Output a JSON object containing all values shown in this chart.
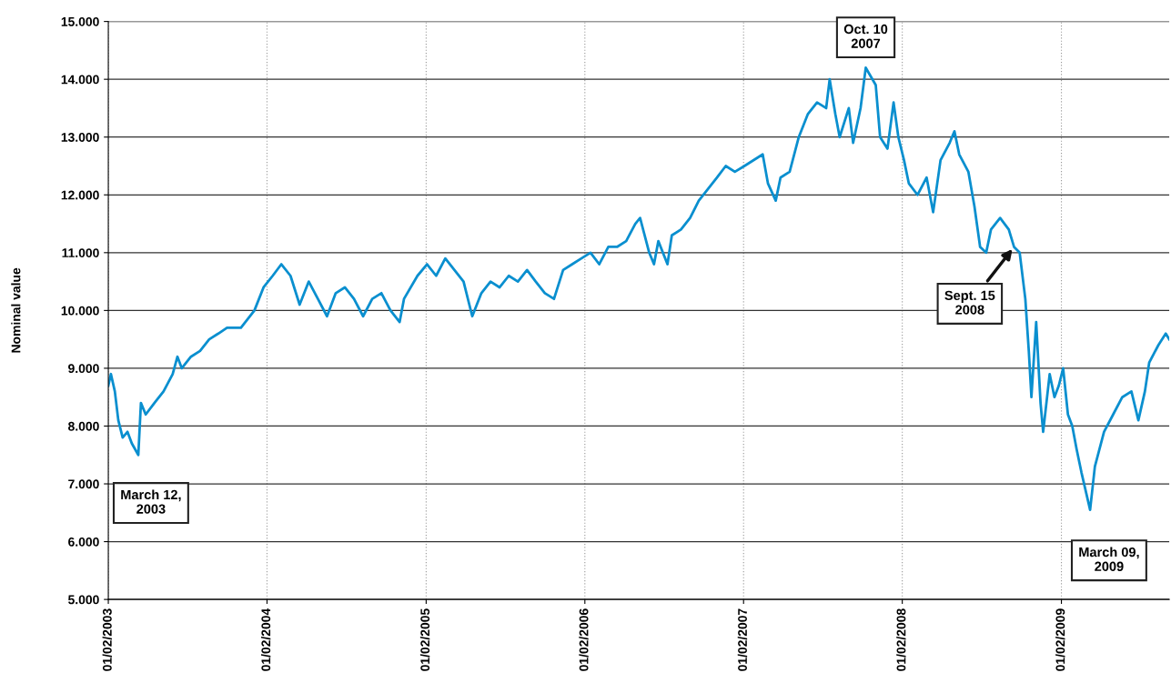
{
  "chart_data": {
    "type": "line",
    "ylabel": "Nominal value",
    "x": [
      "2003-01-02",
      "2003-01-08",
      "2003-01-17",
      "2003-01-25",
      "2003-02-04",
      "2003-02-15",
      "2003-02-25",
      "2003-03-12",
      "2003-03-18",
      "2003-03-29",
      "2003-04-18",
      "2003-05-09",
      "2003-05-30",
      "2003-06-10",
      "2003-06-20",
      "2003-07-11",
      "2003-08-01",
      "2003-08-22",
      "2003-09-12",
      "2003-10-02",
      "2003-11-03",
      "2003-12-04",
      "2003-12-25",
      "2004-01-15",
      "2004-02-04",
      "2004-02-25",
      "2004-03-17",
      "2004-04-07",
      "2004-04-28",
      "2004-05-19",
      "2004-06-08",
      "2004-06-29",
      "2004-07-20",
      "2004-08-10",
      "2004-08-31",
      "2004-09-21",
      "2004-10-12",
      "2004-11-02",
      "2004-11-12",
      "2004-12-13",
      "2005-01-04",
      "2005-01-25",
      "2005-02-15",
      "2005-03-08",
      "2005-03-29",
      "2005-04-18",
      "2005-05-09",
      "2005-05-30",
      "2005-06-20",
      "2005-07-11",
      "2005-08-01",
      "2005-08-22",
      "2005-09-11",
      "2005-10-02",
      "2005-10-23",
      "2005-11-13",
      "2005-12-04",
      "2005-12-25",
      "2006-01-15",
      "2006-02-04",
      "2006-02-25",
      "2006-03-17",
      "2006-04-07",
      "2006-04-28",
      "2006-05-09",
      "2006-05-30",
      "2006-06-10",
      "2006-06-20",
      "2006-07-11",
      "2006-07-21",
      "2006-08-11",
      "2006-09-01",
      "2006-09-21",
      "2006-10-12",
      "2006-11-02",
      "2006-11-22",
      "2006-12-13",
      "2007-01-04",
      "2007-02-15",
      "2007-02-27",
      "2007-03-17",
      "2007-03-28",
      "2007-04-18",
      "2007-05-09",
      "2007-05-30",
      "2007-06-20",
      "2007-07-11",
      "2007-07-19",
      "2007-08-01",
      "2007-08-11",
      "2007-09-01",
      "2007-09-11",
      "2007-09-28",
      "2007-10-10",
      "2007-11-02",
      "2007-11-12",
      "2007-11-29",
      "2007-12-13",
      "2007-12-24",
      "2008-01-06",
      "2008-01-17",
      "2008-02-06",
      "2008-02-27",
      "2008-03-13",
      "2008-03-30",
      "2008-04-20",
      "2008-05-01",
      "2008-05-12",
      "2008-06-02",
      "2008-06-16",
      "2008-06-29",
      "2008-07-13",
      "2008-07-24",
      "2008-08-14",
      "2008-09-03",
      "2008-09-15",
      "2008-09-28",
      "2008-10-11",
      "2008-10-19",
      "2008-10-25",
      "2008-11-05",
      "2008-11-15",
      "2008-11-21",
      "2008-12-06",
      "2008-12-17",
      "2008-12-27",
      "2009-01-06",
      "2009-01-17",
      "2009-01-27",
      "2009-02-06",
      "2009-02-17",
      "2009-03-09",
      "2009-03-20",
      "2009-04-10",
      "2009-05-01",
      "2009-05-22",
      "2009-06-12",
      "2009-06-28",
      "2009-07-13",
      "2009-07-23",
      "2009-08-13",
      "2009-08-30",
      "2009-09-07"
    ],
    "series": [
      {
        "color": "#0a8fcf",
        "values": [
          8700,
          8900,
          8600,
          8100,
          7800,
          7900,
          7700,
          7500,
          8400,
          8200,
          8400,
          8600,
          8900,
          9200,
          9000,
          9200,
          9300,
          9500,
          9600,
          9700,
          9700,
          10000,
          10400,
          10600,
          10800,
          10600,
          10100,
          10500,
          10200,
          9900,
          10300,
          10400,
          10200,
          9900,
          10200,
          10300,
          10000,
          9800,
          10200,
          10600,
          10800,
          10600,
          10900,
          10700,
          10500,
          9900,
          10300,
          10500,
          10400,
          10600,
          10500,
          10700,
          10500,
          10300,
          10200,
          10700,
          10800,
          10900,
          11000,
          10800,
          11100,
          11100,
          11200,
          11500,
          11600,
          11000,
          10800,
          11200,
          10800,
          11300,
          11400,
          11600,
          11900,
          12100,
          12300,
          12500,
          12400,
          12500,
          12700,
          12200,
          11900,
          12300,
          12400,
          13000,
          13400,
          13600,
          13500,
          14000,
          13400,
          13000,
          13500,
          12900,
          13500,
          14200,
          13900,
          13000,
          12800,
          13600,
          13000,
          12600,
          12200,
          12000,
          12300,
          11700,
          12600,
          12900,
          13100,
          12700,
          12400,
          11800,
          11100,
          11000,
          11400,
          11600,
          11400,
          11100,
          11000,
          10200,
          9300,
          8500,
          9800,
          8400,
          7900,
          8900,
          8500,
          8700,
          9000,
          8200,
          8000,
          7600,
          7200,
          6550,
          7300,
          7900,
          8200,
          8500,
          8600,
          8100,
          8600,
          9100,
          9400,
          9600,
          9500
        ]
      }
    ],
    "xlim": [
      "2003-01-02",
      "2009-09-07"
    ],
    "xticks": [
      {
        "value": "2003-01-02",
        "label": "01/02/2003"
      },
      {
        "value": "2004-01-02",
        "label": "01/02/2004"
      },
      {
        "value": "2005-01-02",
        "label": "01/02/2005"
      },
      {
        "value": "2006-01-02",
        "label": "01/02/2006"
      },
      {
        "value": "2007-01-02",
        "label": "01/02/2007"
      },
      {
        "value": "2008-01-02",
        "label": "01/02/2008"
      },
      {
        "value": "2009-01-02",
        "label": "01/02/2009"
      }
    ],
    "ylim": [
      5000,
      15000
    ],
    "yticks": [
      {
        "value": 5000,
        "label": "5.000"
      },
      {
        "value": 6000,
        "label": "6.000"
      },
      {
        "value": 7000,
        "label": "7.000"
      },
      {
        "value": 8000,
        "label": "8.000"
      },
      {
        "value": 9000,
        "label": "9.000"
      },
      {
        "value": 10000,
        "label": "10.000"
      },
      {
        "value": 11000,
        "label": "11.000"
      },
      {
        "value": 12000,
        "label": "12.000"
      },
      {
        "value": 13000,
        "label": "13.000"
      },
      {
        "value": 14000,
        "label": "14.000"
      },
      {
        "value": 15000,
        "label": "15.000"
      }
    ],
    "grid": true,
    "marker": "none",
    "line_style": "solid",
    "annotations": [
      {
        "text": "March 12,\n2003",
        "x": "2003-03-12",
        "y": 7500
      },
      {
        "text": "Oct. 10\n2007",
        "x": "2007-10-10",
        "y": 14200
      },
      {
        "text": "Sept. 15\n2008",
        "x": "2008-09-15",
        "y": 11100
      },
      {
        "text": "March 09,\n2009",
        "x": "2009-03-09",
        "y": 6550
      }
    ]
  }
}
